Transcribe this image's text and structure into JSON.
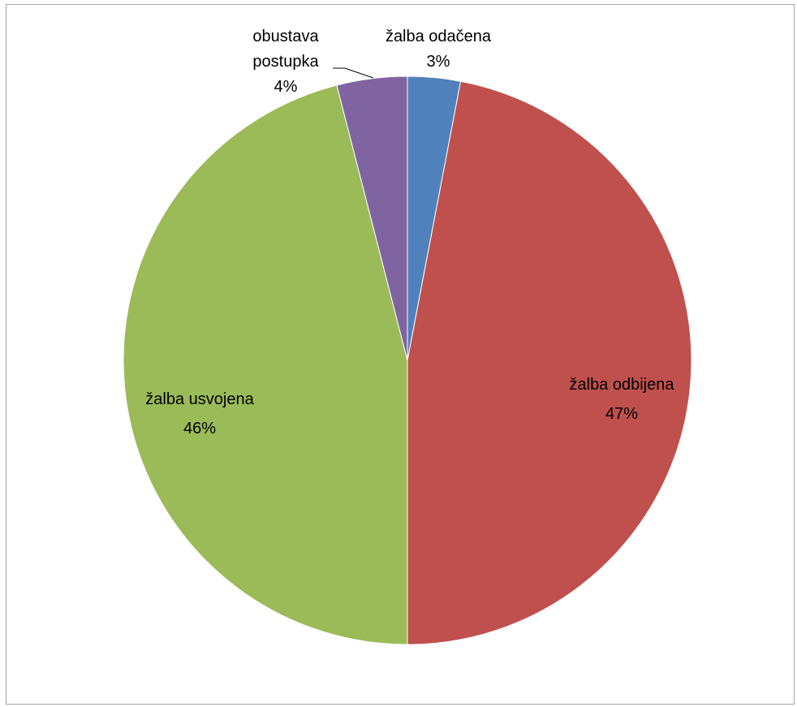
{
  "chart_data": {
    "type": "pie",
    "title": "",
    "start_angle_deg": 0,
    "direction": "clockwise",
    "legend": "none",
    "slices": [
      {
        "label_lines": [
          "žalba odačena"
        ],
        "percent_label": "3%",
        "value": 3,
        "color": "#4f81bd"
      },
      {
        "label_lines": [
          "žalba odbijena"
        ],
        "percent_label": "47%",
        "value": 47,
        "color": "#c0504d"
      },
      {
        "label_lines": [
          "žalba usvojena"
        ],
        "percent_label": "46%",
        "value": 46,
        "color": "#9bbb59"
      },
      {
        "label_lines": [
          "obustava",
          "postupka"
        ],
        "percent_label": "4%",
        "value": 4,
        "color": "#8064a2"
      }
    ]
  }
}
